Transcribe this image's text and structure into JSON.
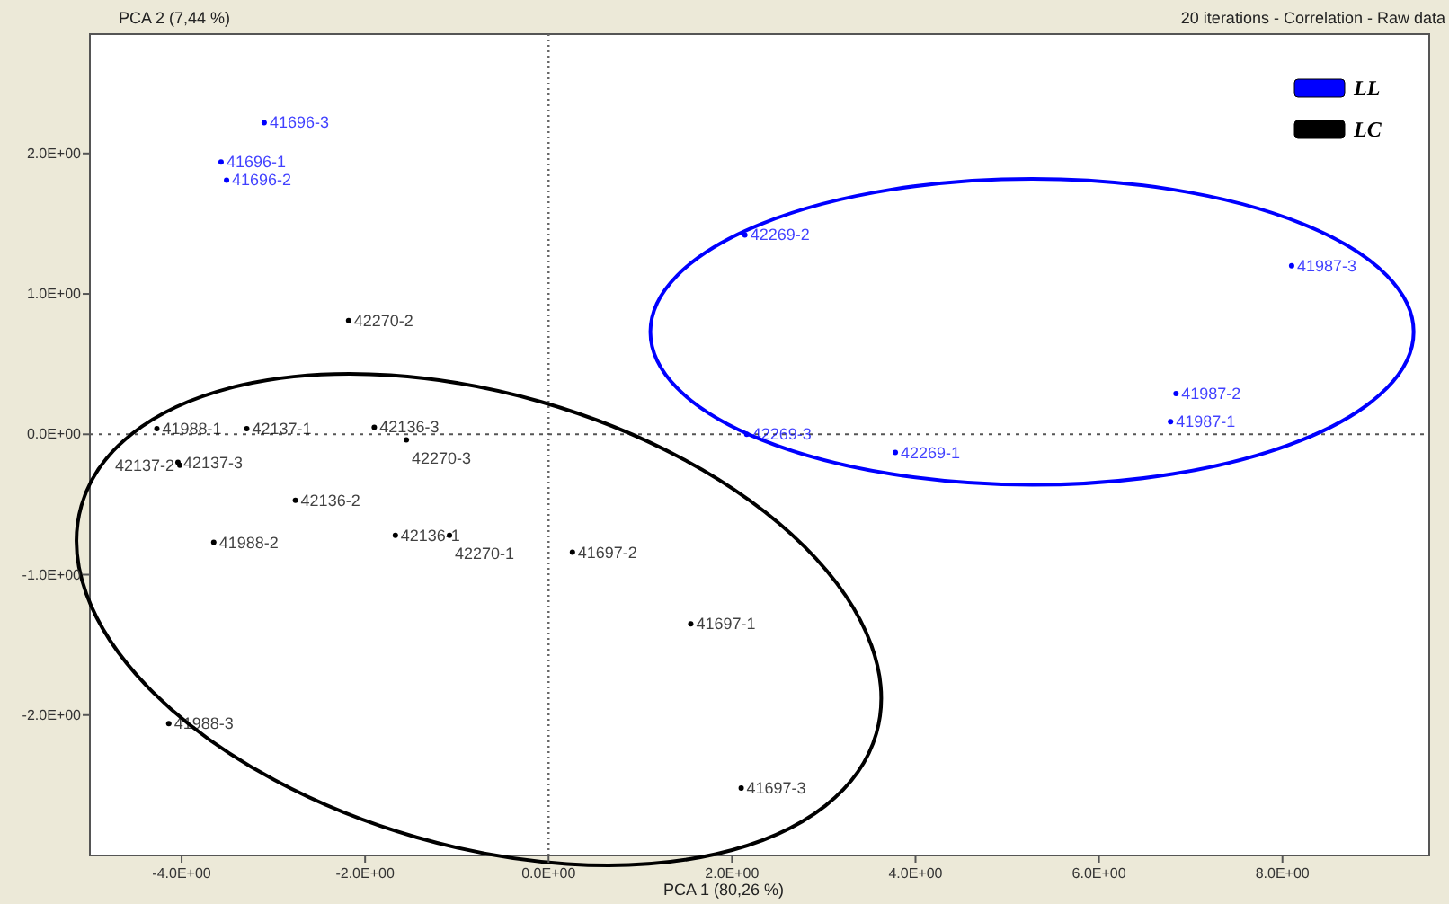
{
  "chart_data": {
    "type": "scatter",
    "ylabel": "PCA 2 (7,44 %)",
    "xlabel": "PCA 1 (80,26 %)",
    "annotations": [
      "20 iterations - Correlation - Raw data"
    ],
    "xlim": [
      -5,
      9.6
    ],
    "ylim": [
      -3,
      2.85
    ],
    "xticks": [
      {
        "value": -4,
        "label": "-4.0E+00"
      },
      {
        "value": -2,
        "label": "-2.0E+00"
      },
      {
        "value": 0,
        "label": "0.0E+00"
      },
      {
        "value": 2,
        "label": "2.0E+00"
      },
      {
        "value": 4,
        "label": "4.0E+00"
      },
      {
        "value": 6,
        "label": "6.0E+00"
      },
      {
        "value": 8,
        "label": "8.0E+00"
      }
    ],
    "yticks": [
      {
        "value": -2,
        "label": "-2.0E+00"
      },
      {
        "value": -1,
        "label": "-1.0E+00"
      },
      {
        "value": 0,
        "label": "0.0E+00"
      },
      {
        "value": 1,
        "label": "1.0E+00"
      },
      {
        "value": 2,
        "label": "2.0E+00"
      }
    ],
    "marker": "circle",
    "legend": "top right",
    "grid": false,
    "ref_lines": [
      {
        "axis": "x",
        "value": 0,
        "line_style": "dotted"
      },
      {
        "axis": "y",
        "value": 0,
        "line_style": "dotted"
      }
    ],
    "series": [
      {
        "name": "LL",
        "color": "#0000ff",
        "x": [
          -3.1,
          -3.57,
          -3.51,
          2.14,
          8.1,
          6.84,
          6.78,
          2.16,
          3.78
        ],
        "values": [
          2.22,
          1.94,
          1.81,
          1.42,
          1.2,
          0.29,
          0.09,
          0,
          -0.13
        ],
        "value_labels": [
          "41696-3",
          "41696-1",
          "41696-2",
          "42269-2",
          "41987-3",
          "41987-2",
          "41987-1",
          "42269-3",
          "42269-1"
        ]
      },
      {
        "name": "LC",
        "color": "#000000",
        "x": [
          -2.18,
          -4.27,
          -3.29,
          -1.9,
          -1.55,
          -4.04,
          -4.02,
          -2.76,
          -3.65,
          -1.67,
          -1.08,
          0.26,
          1.55,
          2.1,
          -4.14
        ],
        "values": [
          0.81,
          0.04,
          0.04,
          0.05,
          -0.04,
          -0.2,
          -0.22,
          -0.47,
          -0.77,
          -0.72,
          -0.72,
          -0.84,
          -1.35,
          -2.52,
          -2.06
        ],
        "value_labels": [
          "42270-2",
          "41988-1",
          "42137-1",
          "42136-3",
          "42270-3",
          "42137-3",
          "42137-2",
          "42136-2",
          "41988-2",
          "42136-1",
          "42270-1",
          "41697-2",
          "41697-1",
          "41697-3",
          "41988-3"
        ]
      }
    ]
  }
}
